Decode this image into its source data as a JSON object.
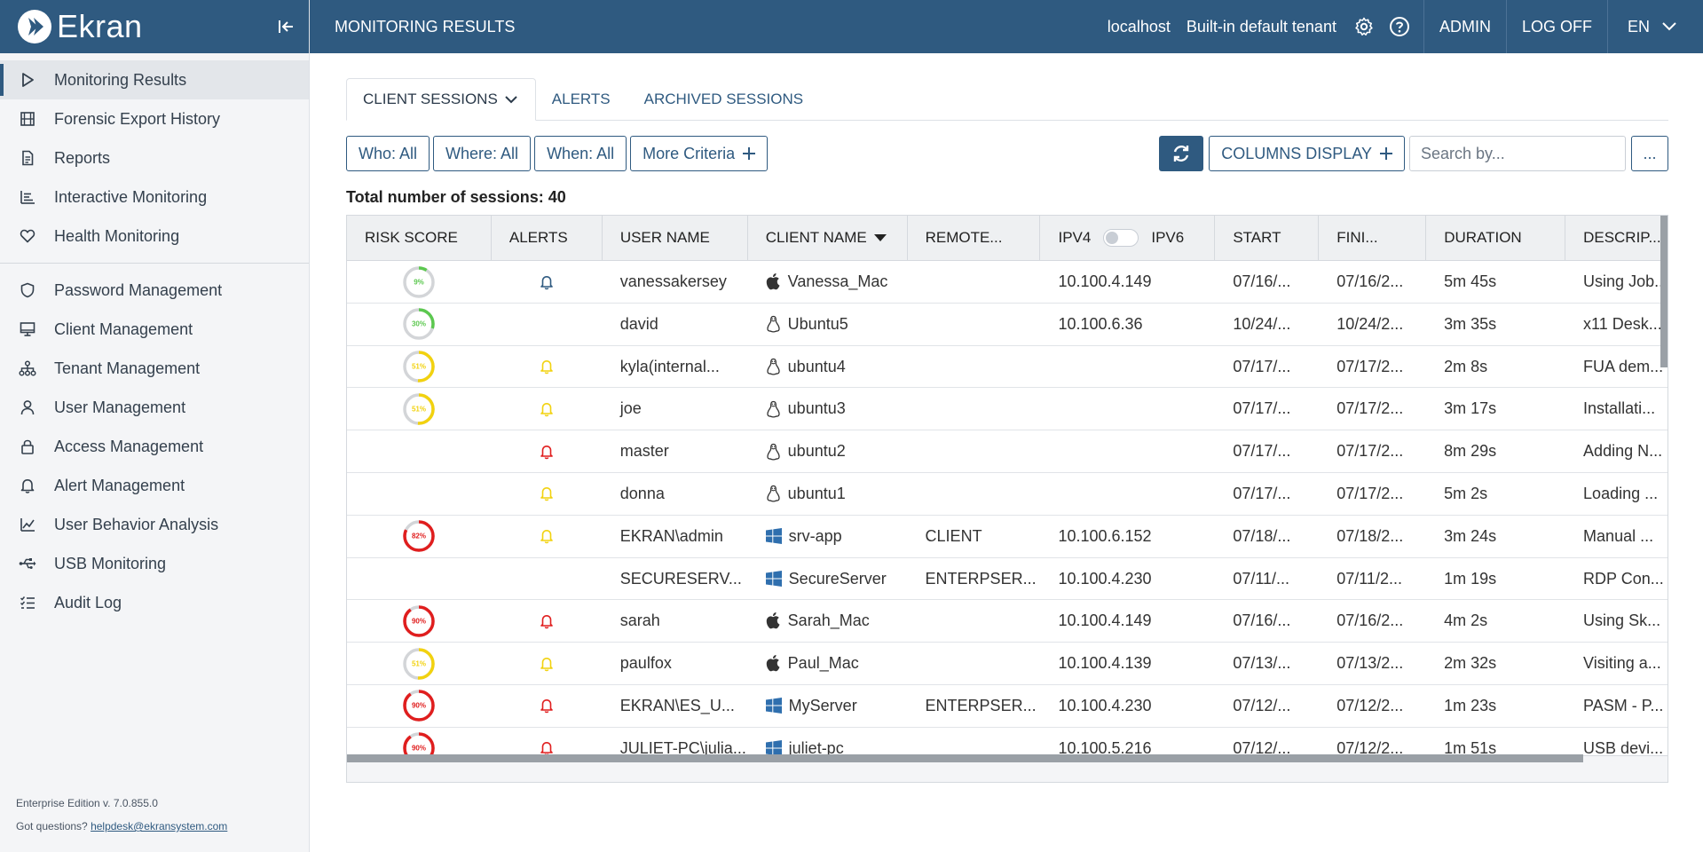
{
  "brand": {
    "name": "Ekran"
  },
  "sidebar": {
    "groups": [
      [
        {
          "label": "Monitoring Results",
          "icon": "play-outline-icon",
          "active": true
        },
        {
          "label": "Forensic Export History",
          "icon": "film-icon"
        },
        {
          "label": "Reports",
          "icon": "document-icon"
        },
        {
          "label": "Interactive Monitoring",
          "icon": "bars-chart-icon"
        },
        {
          "label": "Health Monitoring",
          "icon": "heart-icon"
        }
      ],
      [
        {
          "label": "Password Management",
          "icon": "shield-icon"
        },
        {
          "label": "Client Management",
          "icon": "monitor-icon"
        },
        {
          "label": "Tenant Management",
          "icon": "hierarchy-icon"
        },
        {
          "label": "User Management",
          "icon": "user-icon"
        },
        {
          "label": "Access Management",
          "icon": "lock-icon"
        },
        {
          "label": "Alert Management",
          "icon": "bell-icon"
        },
        {
          "label": "User Behavior Analysis",
          "icon": "line-chart-icon"
        },
        {
          "label": "USB Monitoring",
          "icon": "usb-icon"
        },
        {
          "label": "Audit Log",
          "icon": "checklist-icon"
        }
      ]
    ],
    "footer": {
      "edition": "Enterprise Edition v. 7.0.855.0",
      "questions": "Got questions?",
      "email": "helpdesk@ekransystem.com"
    }
  },
  "topbar": {
    "title": "MONITORING RESULTS",
    "host": "localhost",
    "tenant": "Built-in default tenant",
    "admin": "ADMIN",
    "logoff": "LOG OFF",
    "lang": "EN"
  },
  "tabs": [
    {
      "label": "CLIENT SESSIONS",
      "active": true
    },
    {
      "label": "ALERTS"
    },
    {
      "label": "ARCHIVED SESSIONS"
    }
  ],
  "filters": {
    "who": "Who: All",
    "where": "Where: All",
    "when": "When: All",
    "more": "More Criteria",
    "columns": "COLUMNS DISPLAY",
    "search_placeholder": "Search by...",
    "more_actions": "..."
  },
  "total": {
    "label": "Total number of sessions:",
    "value": "40"
  },
  "grid": {
    "headers": {
      "risk": "RISK SCORE",
      "alerts": "ALERTS",
      "user": "USER NAME",
      "client": "CLIENT NAME",
      "remote": "REMOTE...",
      "ipv4": "IPV4",
      "ipv6": "IPV6",
      "start": "START",
      "finish": "FINI...",
      "duration": "DURATION",
      "desc": "DESCRIP..."
    },
    "colors": {
      "green": "#5cc84f",
      "yellow": "#f2d20f",
      "red": "#e01e1e",
      "blue_bell": "#2f5a80",
      "ring_track": "#d3d5d8"
    },
    "rows": [
      {
        "risk": 9,
        "risk_label": "9%",
        "alert": "blue",
        "user": "vanessakersey",
        "os": "apple-icon",
        "client": "Vanessa_Mac",
        "remote": "",
        "ip": "10.100.4.149",
        "start": "07/16/...",
        "finish": "07/16/2...",
        "duration": "5m 45s",
        "desc": "Using Job..."
      },
      {
        "risk": 30,
        "risk_label": "30%",
        "alert": "",
        "user": "david",
        "os": "linux-icon",
        "client": "Ubuntu5",
        "remote": "",
        "ip": "10.100.6.36",
        "start": "10/24/...",
        "finish": "10/24/2...",
        "duration": "3m 35s",
        "desc": "x11 Desk..."
      },
      {
        "risk": 51,
        "risk_label": "51%",
        "alert": "yellow",
        "user": "kyla(internal...",
        "os": "linux-icon",
        "client": "ubuntu4",
        "remote": "",
        "ip": "",
        "start": "07/17/...",
        "finish": "07/17/2...",
        "duration": "2m 8s",
        "desc": "FUA dem..."
      },
      {
        "risk": 51,
        "risk_label": "51%",
        "alert": "yellow",
        "user": "joe",
        "os": "linux-icon",
        "client": "ubuntu3",
        "remote": "",
        "ip": "",
        "start": "07/17/...",
        "finish": "07/17/2...",
        "duration": "3m 17s",
        "desc": "Installati..."
      },
      {
        "risk": null,
        "risk_label": "",
        "alert": "red",
        "user": "master",
        "os": "linux-icon",
        "client": "ubuntu2",
        "remote": "",
        "ip": "",
        "start": "07/17/...",
        "finish": "07/17/2...",
        "duration": "8m 29s",
        "desc": "Adding N..."
      },
      {
        "risk": null,
        "risk_label": "",
        "alert": "yellow",
        "user": "donna",
        "os": "linux-icon",
        "client": "ubuntu1",
        "remote": "",
        "ip": "",
        "start": "07/17/...",
        "finish": "07/17/2...",
        "duration": "5m 2s",
        "desc": "Loading ..."
      },
      {
        "risk": 82,
        "risk_label": "82%",
        "alert": "yellow",
        "user": "EKRAN\\admin",
        "os": "windows-icon",
        "client": "srv-app",
        "remote": "CLIENT",
        "ip": "10.100.6.152",
        "start": "07/18/...",
        "finish": "07/18/2...",
        "duration": "3m 24s",
        "desc": "Manual ..."
      },
      {
        "risk": null,
        "risk_label": "",
        "alert": "",
        "user": "SECURESERV...",
        "os": "windows-icon",
        "client": "SecureServer",
        "remote": "ENTERPSER...",
        "ip": "10.100.4.230",
        "start": "07/11/...",
        "finish": "07/11/2...",
        "duration": "1m 19s",
        "desc": "RDP Con..."
      },
      {
        "risk": 90,
        "risk_label": "90%",
        "alert": "red",
        "user": "sarah",
        "os": "apple-icon",
        "client": "Sarah_Mac",
        "remote": "",
        "ip": "10.100.4.149",
        "start": "07/16/...",
        "finish": "07/16/2...",
        "duration": "4m 2s",
        "desc": "Using Sk..."
      },
      {
        "risk": 51,
        "risk_label": "51%",
        "alert": "yellow",
        "user": "paulfox",
        "os": "apple-icon",
        "client": "Paul_Mac",
        "remote": "",
        "ip": "10.100.4.139",
        "start": "07/13/...",
        "finish": "07/13/2...",
        "duration": "2m 32s",
        "desc": "Visiting a..."
      },
      {
        "risk": 90,
        "risk_label": "90%",
        "alert": "red",
        "user": "EKRAN\\ES_U...",
        "os": "windows-icon",
        "client": "MyServer",
        "remote": "ENTERPSER...",
        "ip": "10.100.4.230",
        "start": "07/12/...",
        "finish": "07/12/2...",
        "duration": "1m 23s",
        "desc": "PASM - P..."
      },
      {
        "risk": 90,
        "risk_label": "90%",
        "alert": "red",
        "user": "JULIET-PC\\julia...",
        "os": "windows-icon",
        "client": "juliet-pc",
        "remote": "",
        "ip": "10.100.5.216",
        "start": "07/12/...",
        "finish": "07/12/2...",
        "duration": "1m 51s",
        "desc": "USB devi..."
      }
    ]
  }
}
